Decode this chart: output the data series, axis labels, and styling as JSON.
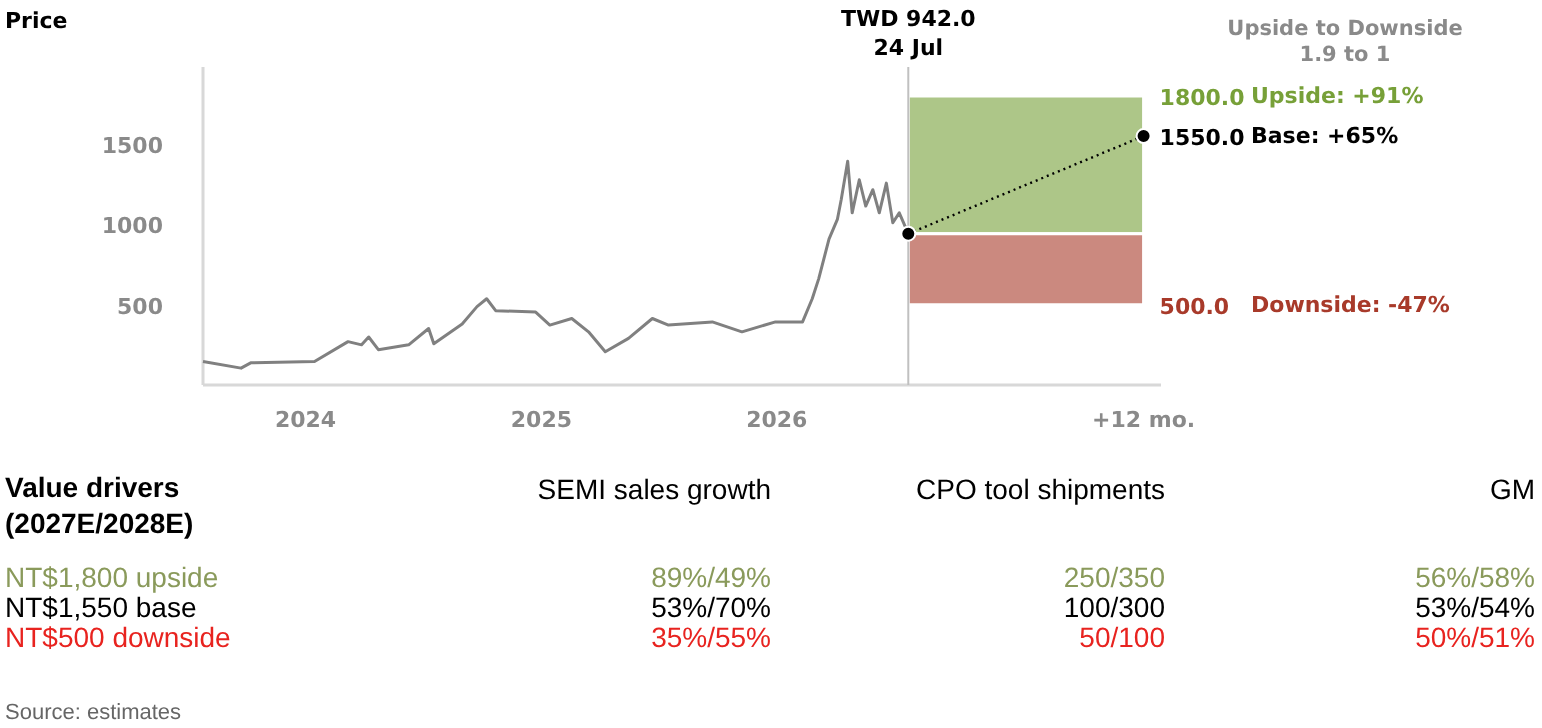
{
  "chart_data": [
    {
      "type": "line",
      "title": "Price",
      "xlim": [
        "2023-07-26",
        "2027-08-20"
      ],
      "ylim": [
        0,
        1980
      ],
      "xticks": [
        {
          "value": "2024-01-01",
          "label": "2024"
        },
        {
          "value": "2025-01-01",
          "label": "2025"
        },
        {
          "value": "2026-01-01",
          "label": "2026"
        },
        {
          "value": "2027-07-24",
          "label": "+12 mo."
        }
      ],
      "yticks": [
        500,
        1000,
        1500
      ],
      "grid": false,
      "series": [
        {
          "color": "#808080",
          "line_style": "solid",
          "x": [
            "2023-07-26",
            "2023-09-23",
            "2023-10-08",
            "2024-01-15",
            "2024-03-07",
            "2024-03-28",
            "2024-04-08",
            "2024-04-23",
            "2024-06-09",
            "2024-07-10",
            "2024-07-18",
            "2024-08-31",
            "2024-09-23",
            "2024-10-08",
            "2024-10-22",
            "2024-12-23",
            "2025-01-14",
            "2025-02-17",
            "2025-03-15",
            "2025-04-10",
            "2025-05-16",
            "2025-06-22",
            "2025-07-17",
            "2025-09-23",
            "2025-11-08",
            "2025-12-30",
            "2026-02-10",
            "2026-02-25",
            "2026-03-07",
            "2026-03-23",
            "2026-04-05",
            "2026-04-11",
            "2026-04-21",
            "2026-04-28",
            "2026-05-09",
            "2026-05-19",
            "2026-05-30",
            "2026-06-09",
            "2026-06-20",
            "2026-06-30",
            "2026-07-10",
            "2026-07-24"
          ],
          "values": [
            146,
            105,
            138,
            146,
            270,
            250,
            299,
            220,
            250,
            352,
            257,
            380,
            488,
            537,
            463,
            454,
            373,
            414,
            331,
            207,
            290,
            414,
            373,
            393,
            331,
            393,
            393,
            537,
            661,
            908,
            1031,
            1155,
            1393,
            1072,
            1278,
            1114,
            1216,
            1072,
            1257,
            1010,
            1072,
            942
          ]
        },
        {
          "color": "#000000",
          "line_style": "dotted",
          "marker": "circle",
          "x": [
            "2026-07-24",
            "2027-07-24"
          ],
          "values": [
            942,
            1550
          ]
        }
      ],
      "ref_lines": [
        {
          "axis": "x",
          "value": "2026-07-24",
          "label": "TWD 942.0\n24 Jul",
          "color": "#c0c0c0"
        }
      ],
      "bands": [
        {
          "axis": "y",
          "from": 942,
          "to": 1800,
          "label": "1800.0",
          "color": "#77a038"
        },
        {
          "axis": "y",
          "from": 942,
          "to": 500,
          "label": "500.0",
          "color": "#a83a2a"
        }
      ],
      "annotations": [
        "Upside to Downside\n1.9 to 1",
        {
          "text": "1550.0",
          "x": "2027-07-24",
          "y": 1550
        },
        "Upside:       +91%",
        "Base:           +65%",
        "Downside:  -47%"
      ]
    },
    {
      "type": "other",
      "annotations": [
        "Value drivers\n(2027E/2028E)",
        "SEMI sales growth",
        "CPO tool shipments",
        "GM",
        "NT$1,800 upside",
        "89%/49%",
        "250/350",
        "56%/58%",
        "NT$1,550 base",
        "53%/70%",
        "100/300",
        "53%/54%",
        "NT$500 downside",
        "35%/55%",
        "50/100",
        "50%/51%",
        "Source: estimates"
      ]
    }
  ]
}
